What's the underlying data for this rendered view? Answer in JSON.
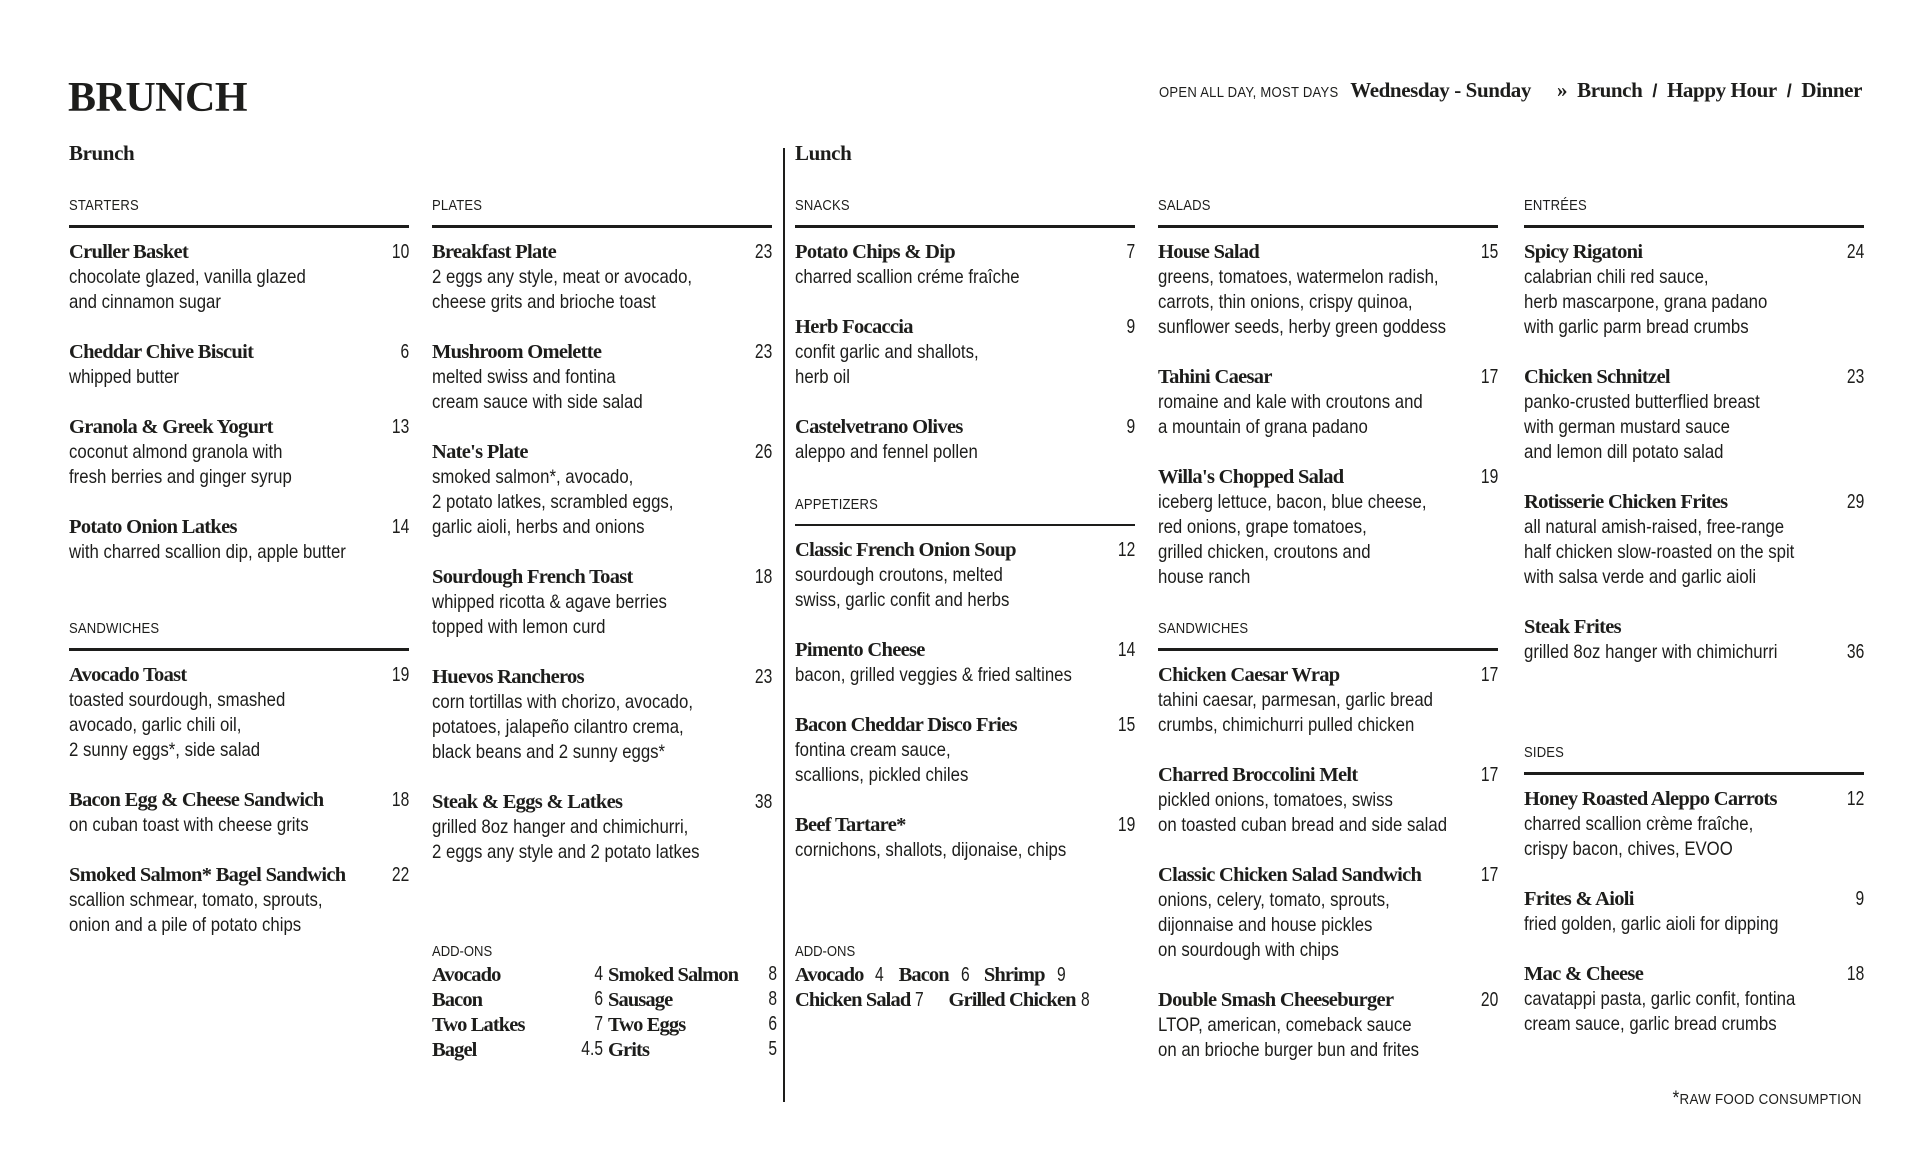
{
  "header": {
    "title": "BRUNCH",
    "tagline": "OPEN ALL DAY, MOST DAYS",
    "days": "Wednesday - Sunday",
    "nav_prefix": "»",
    "nav_separator": "/",
    "nav": [
      "Brunch",
      "Happy Hour",
      "Dinner"
    ]
  },
  "brunch": {
    "heading": "Brunch",
    "sections": [
      {
        "label": "STARTERS",
        "items": [
          {
            "name": "Cruller Basket",
            "price": "10",
            "desc": "chocolate glazed, vanilla glazed\nand cinnamon sugar"
          },
          {
            "name": "Cheddar Chive Biscuit",
            "price": "6",
            "desc": "whipped butter"
          },
          {
            "name": "Granola & Greek Yogurt",
            "price": "13",
            "desc": "coconut almond granola with\nfresh berries and ginger syrup"
          },
          {
            "name": "Potato Onion Latkes",
            "price": "14",
            "desc": "with charred scallion dip, apple butter"
          }
        ]
      },
      {
        "label": "SANDWICHES",
        "items": [
          {
            "name": "Avocado Toast",
            "price": "19",
            "desc": "toasted sourdough, smashed\navocado, garlic chili oil,\n2 sunny eggs*, side salad"
          },
          {
            "name": "Bacon Egg & Cheese Sandwich",
            "price": "18",
            "desc": "on cuban toast with cheese grits"
          },
          {
            "name": "Smoked Salmon* Bagel Sandwich",
            "price": "22",
            "desc": "scallion schmear, tomato, sprouts,\nonion and a pile of potato chips"
          }
        ]
      },
      {
        "label": "PLATES",
        "items": [
          {
            "name": "Breakfast Plate",
            "price": "23",
            "desc": "2 eggs any style, meat or avocado,\ncheese grits and brioche toast"
          },
          {
            "name": "Mushroom Omelette",
            "price": "23",
            "desc": "melted swiss and fontina\ncream sauce with side salad"
          },
          {
            "name": "Nate's Plate",
            "price": "26",
            "desc": "smoked salmon*, avocado,\n2 potato latkes, scrambled eggs,\ngarlic aioli, herbs and onions"
          },
          {
            "name": "Sourdough French Toast",
            "price": "18",
            "desc": "whipped ricotta & agave berries\ntopped with lemon curd"
          },
          {
            "name": "Huevos Rancheros",
            "price": "23",
            "desc": "corn tortillas with chorizo, avocado,\npotatoes, jalapeño cilantro crema,\nblack beans and 2 sunny eggs*"
          },
          {
            "name": "Steak & Eggs & Latkes",
            "price": "38",
            "desc": "grilled 8oz hanger and chimichurri,\n2 eggs any style and 2 potato latkes"
          }
        ]
      }
    ],
    "addons": {
      "label": "ADD-ONS",
      "items": [
        {
          "name": "Avocado",
          "price": "4"
        },
        {
          "name": "Smoked Salmon",
          "price": "8"
        },
        {
          "name": "Bacon",
          "price": "6"
        },
        {
          "name": "Sausage",
          "price": "8"
        },
        {
          "name": "Two Latkes",
          "price": "7"
        },
        {
          "name": "Two Eggs",
          "price": "6"
        },
        {
          "name": "Bagel",
          "price": "4.5"
        },
        {
          "name": "Grits",
          "price": "5"
        }
      ]
    }
  },
  "lunch": {
    "heading": "Lunch",
    "sections": [
      {
        "label": "SNACKS",
        "items": [
          {
            "name": "Potato Chips & Dip",
            "price": "7",
            "desc": "charred scallion créme fraîche"
          },
          {
            "name": "Herb Focaccia",
            "price": "9",
            "desc": "confit garlic and shallots,\nherb oil"
          },
          {
            "name": "Castelvetrano Olives",
            "price": "9",
            "desc": "aleppo and fennel pollen"
          }
        ]
      },
      {
        "label": "APPETIZERS",
        "items": [
          {
            "name": "Classic French Onion Soup",
            "price": "12",
            "desc": "sourdough croutons, melted\nswiss, garlic confit and herbs"
          },
          {
            "name": "Pimento Cheese",
            "price": "14",
            "desc": "bacon, grilled veggies & fried saltines"
          },
          {
            "name": "Bacon Cheddar Disco Fries",
            "price": "15",
            "desc": "fontina cream sauce,\nscallions, pickled chiles"
          },
          {
            "name": "Beef Tartare*",
            "price": "19",
            "desc": "cornichons, shallots, dijonaise, chips"
          }
        ]
      },
      {
        "label": "SALADS",
        "items": [
          {
            "name": "House Salad",
            "price": "15",
            "desc": "greens, tomatoes, watermelon radish,\ncarrots, thin onions, crispy quinoa,\nsunflower seeds, herby green goddess"
          },
          {
            "name": "Tahini Caesar",
            "price": "17",
            "desc": "romaine and kale with croutons and\na mountain of grana padano"
          },
          {
            "name": "Willa's Chopped Salad",
            "price": "19",
            "desc": "iceberg lettuce, bacon, blue cheese,\nred onions, grape tomatoes,\ngrilled chicken, croutons and\nhouse ranch"
          }
        ]
      },
      {
        "label": "SANDWICHES",
        "items": [
          {
            "name": "Chicken Caesar Wrap",
            "price": "17",
            "desc": "tahini caesar, parmesan, garlic bread\ncrumbs, chimichurri pulled chicken"
          },
          {
            "name": "Charred Broccolini Melt",
            "price": "17",
            "desc": "pickled onions, tomatoes, swiss\non toasted cuban bread and side salad"
          },
          {
            "name": "Classic Chicken Salad Sandwich",
            "price": "17",
            "desc": "onions, celery, tomato, sprouts,\ndijonnaise and house pickles\non sourdough with chips"
          },
          {
            "name": "Double Smash Cheeseburger",
            "price": "20",
            "desc": "LTOP, american, comeback sauce\non an brioche burger bun and frites"
          }
        ]
      },
      {
        "label": "ENTRÉES",
        "items": [
          {
            "name": "Spicy Rigatoni",
            "price": "24",
            "desc": "calabrian chili red sauce,\nherb mascarpone, grana padano\nwith garlic parm bread crumbs"
          },
          {
            "name": "Chicken Schnitzel",
            "price": "23",
            "desc": "panko-crusted butterflied breast\nwith german mustard sauce\nand lemon dill potato salad"
          },
          {
            "name": "Rotisserie Chicken Frites",
            "price": "29",
            "desc": "all natural amish-raised, free-range\nhalf chicken slow-roasted on the spit\nwith salsa verde and garlic aioli"
          },
          {
            "name": "Steak Frites",
            "price": "36",
            "desc": "grilled 8oz hanger with chimichurri"
          }
        ]
      },
      {
        "label": "SIDES",
        "items": [
          {
            "name": "Honey Roasted Aleppo Carrots",
            "price": "12",
            "desc": "charred scallion crème fraîche,\ncrispy bacon, chives, EVOO"
          },
          {
            "name": "Frites & Aioli",
            "price": "9",
            "desc": "fried golden, garlic aioli for dipping"
          },
          {
            "name": "Mac & Cheese",
            "price": "18",
            "desc": "cavatappi pasta, garlic confit, fontina\ncream sauce, garlic bread crumbs"
          }
        ]
      }
    ],
    "addons": {
      "label": "ADD-ONS",
      "rows": [
        [
          {
            "name": "Avocado",
            "price": "4"
          },
          {
            "name": "Bacon",
            "price": "6"
          },
          {
            "name": "Shrimp",
            "price": "9"
          }
        ],
        [
          {
            "name": "Chicken Salad",
            "price": "7"
          },
          {
            "name": "Grilled Chicken",
            "price": "8"
          }
        ]
      ]
    }
  },
  "footnote": {
    "asterisk": "*",
    "text": "RAW FOOD CONSUMPTION"
  }
}
